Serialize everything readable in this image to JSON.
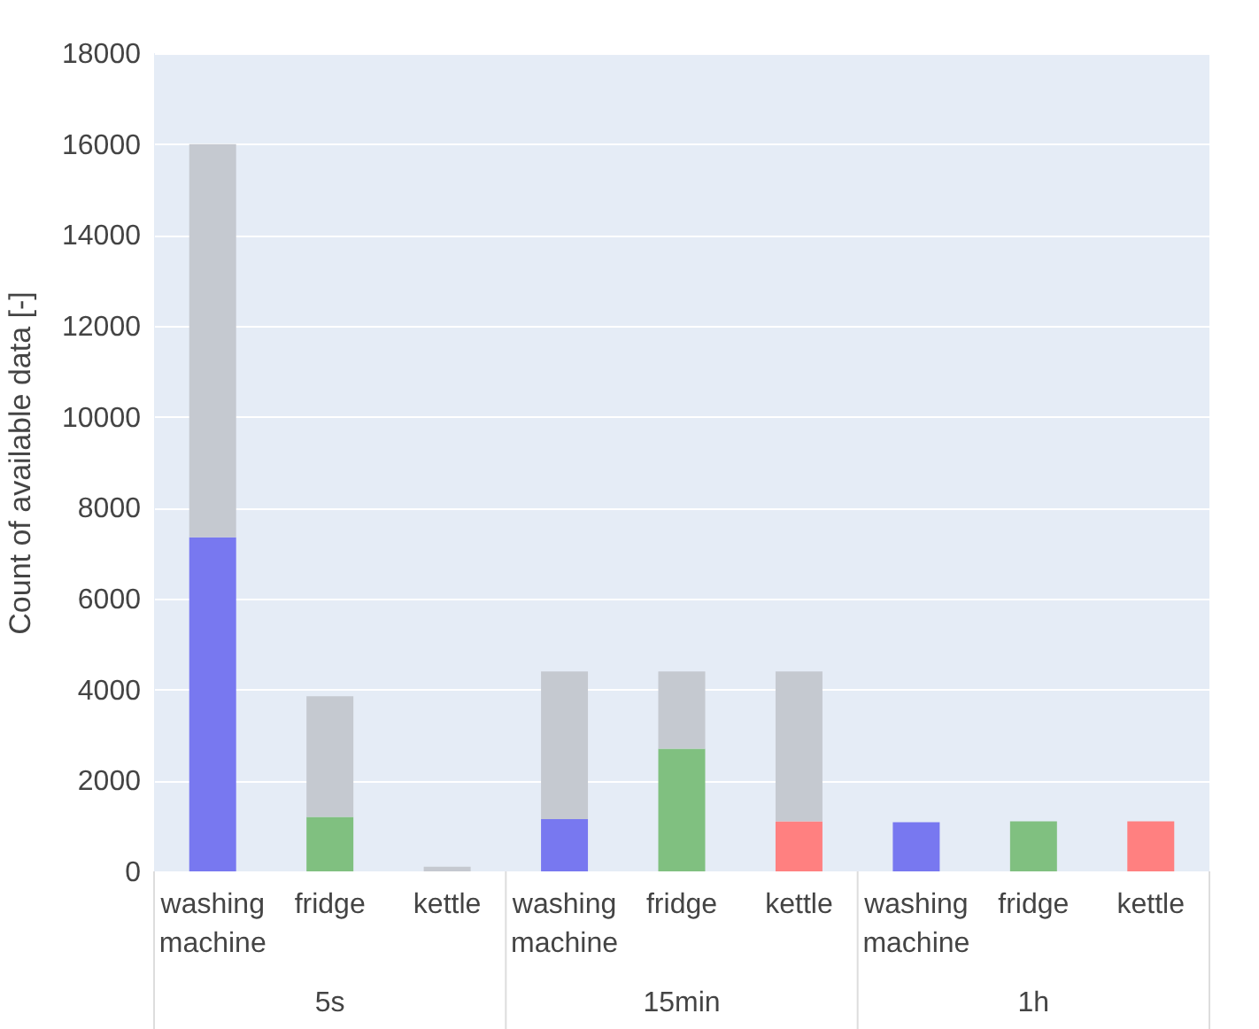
{
  "chart_data": {
    "type": "bar",
    "stacked": true,
    "ylabel": "Count of available data [-]",
    "categories": [
      "washing machine",
      "fridge",
      "kettle",
      "washing machine",
      "fridge",
      "kettle",
      "washing machine",
      "fridge",
      "kettle"
    ],
    "annotations": [
      "5s",
      "15min",
      "1h"
    ],
    "series": [
      {
        "colors": [
          "#7878f0",
          "#80c080",
          "#ff8080",
          "#7878f0",
          "#80c080",
          "#ff8080",
          "#7878f0",
          "#80c080",
          "#ff8080"
        ],
        "values": [
          7350,
          1200,
          0,
          1150,
          2700,
          1100,
          1080,
          1100,
          1100
        ]
      },
      {
        "color": "#c5c9d0",
        "values": [
          8650,
          2650,
          100,
          3250,
          1700,
          3300,
          0,
          0,
          0
        ]
      }
    ],
    "ylim": [
      0,
      18000
    ],
    "yticks": [
      0,
      2000,
      4000,
      6000,
      8000,
      10000,
      12000,
      14000,
      16000,
      18000
    ],
    "grid": "y"
  }
}
